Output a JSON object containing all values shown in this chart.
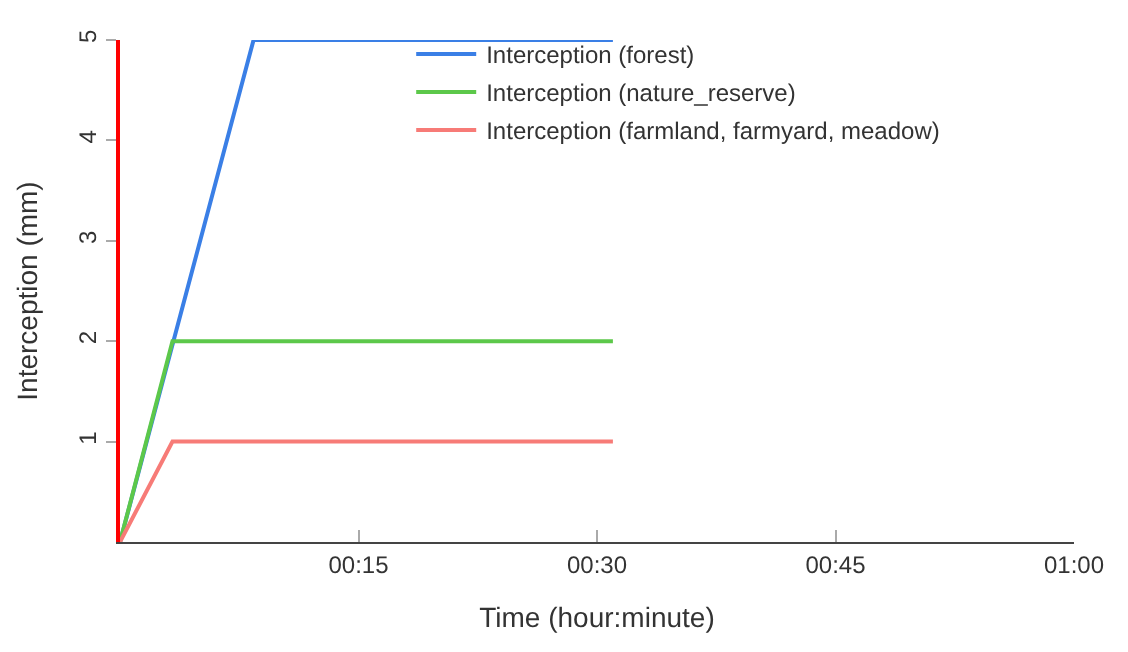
{
  "chart_data": {
    "type": "line",
    "xlabel": "Time (hour:minute)",
    "ylabel": "Interception (mm)",
    "x": [
      0,
      3.3,
      31
    ],
    "series": [
      {
        "name": "Interception (forest)",
        "color": "#3a7fe6",
        "x": [
          0,
          8.4,
          31
        ],
        "values": [
          0,
          5,
          5
        ]
      },
      {
        "name": "Interception (nature_reserve)",
        "color": "#5cc84a",
        "values": [
          0,
          2,
          2
        ]
      },
      {
        "name": "Interception (farmland, farmyard, meadow)",
        "color": "#f77b77",
        "values": [
          0,
          1,
          1
        ]
      }
    ],
    "xlim": [
      0,
      60
    ],
    "xticks": [
      {
        "value": 15,
        "label": "00:15"
      },
      {
        "value": 30,
        "label": "00:30"
      },
      {
        "value": 45,
        "label": "00:45"
      },
      {
        "value": 60,
        "label": "01:00"
      }
    ],
    "ylim": [
      0,
      5
    ],
    "yticks": [
      1,
      2,
      3,
      4,
      5
    ],
    "legend": "top right",
    "marker": "none",
    "line_style": "solid"
  }
}
